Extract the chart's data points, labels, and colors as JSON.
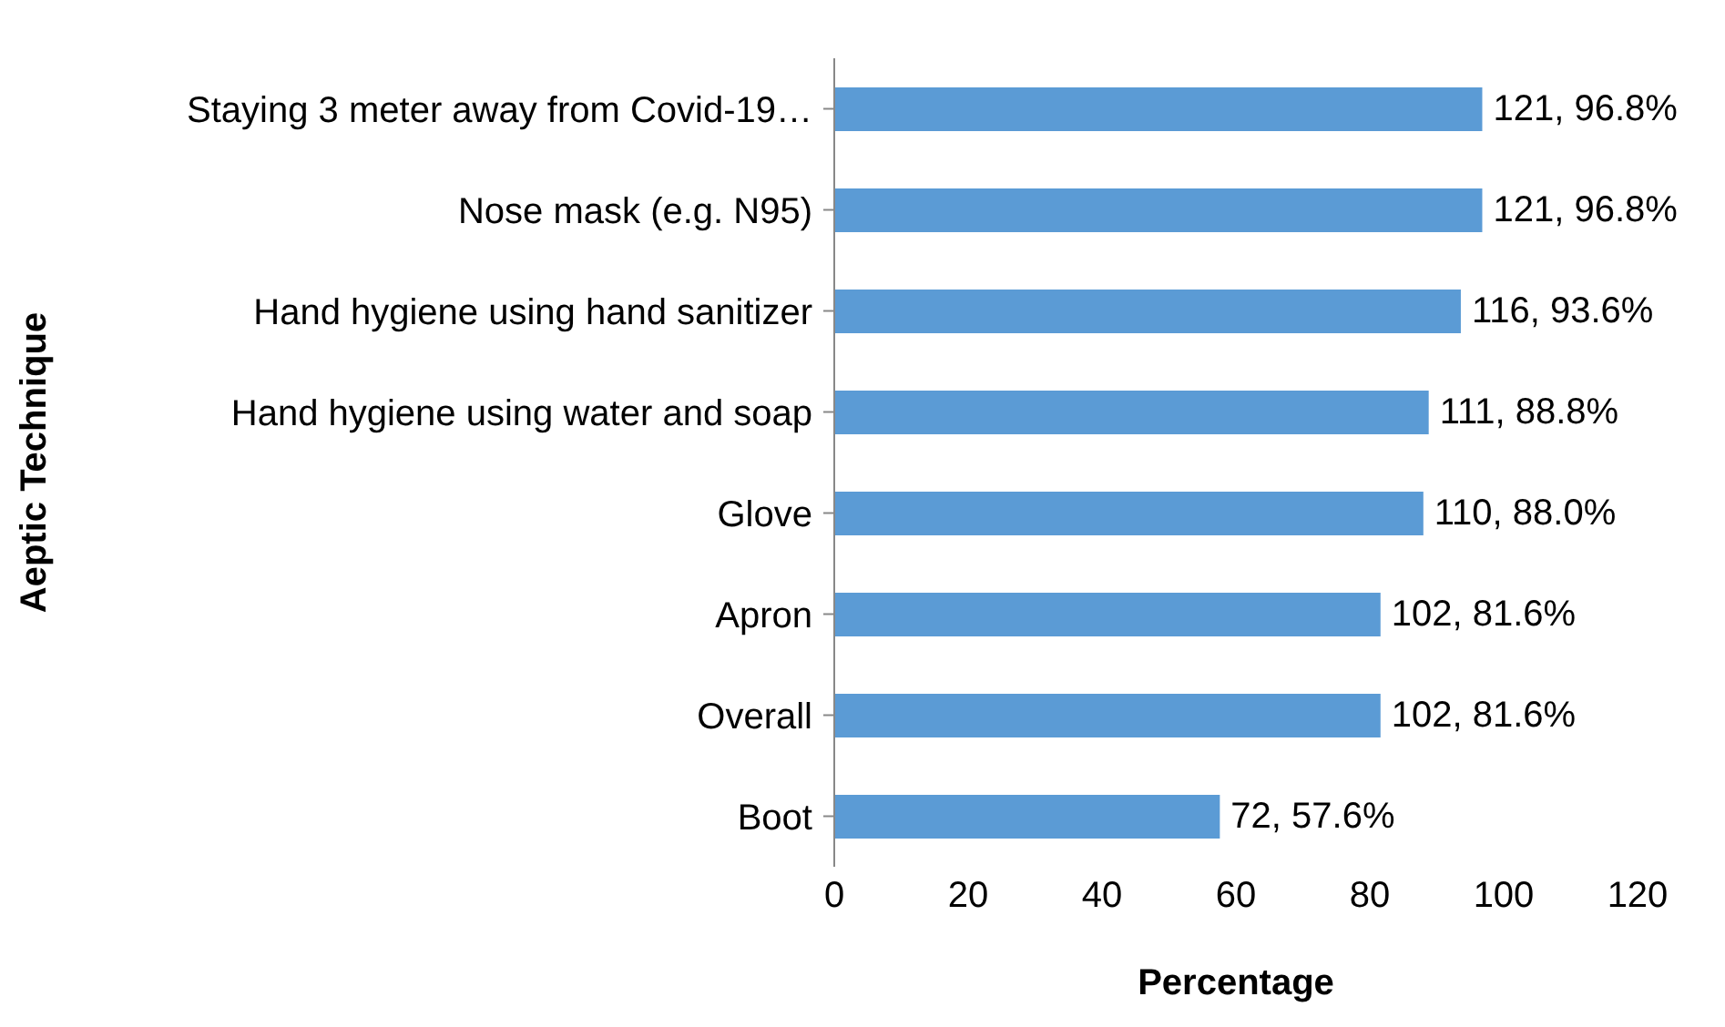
{
  "chart_data": {
    "type": "bar",
    "orientation": "horizontal",
    "xlabel": "Percentage",
    "ylabel": "Aeptic Technique",
    "categories": [
      "Staying 3 meter away from Covid-19…",
      "Nose mask (e.g. N95)",
      "Hand hygiene using hand sanitizer",
      "Hand hygiene using water and soap",
      "Glove",
      "Apron",
      "Overall",
      "Boot"
    ],
    "values": [
      96.8,
      96.8,
      93.6,
      88.8,
      88.0,
      81.6,
      81.6,
      57.6
    ],
    "value_labels": [
      "121, 96.8%",
      "121, 96.8%",
      "116, 93.6%",
      "111, 88.8%",
      "110, 88.0%",
      "102, 81.6%",
      "102, 81.6%",
      "72, 57.6%"
    ],
    "color": "#5b9bd5",
    "xlim": [
      0,
      120
    ],
    "xticks": [
      0,
      20,
      40,
      60,
      80,
      100,
      120
    ],
    "grid": false,
    "legend": false
  }
}
